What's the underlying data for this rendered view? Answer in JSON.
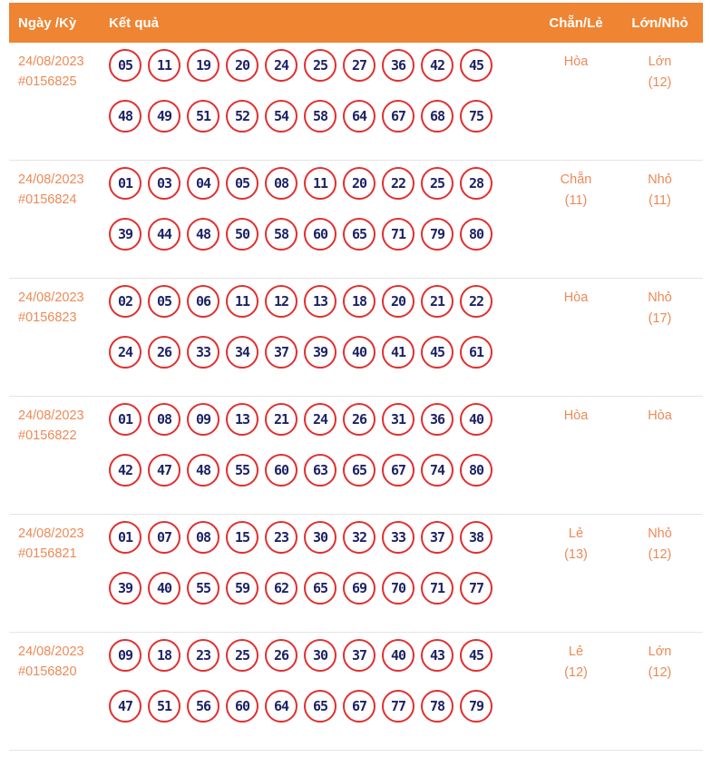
{
  "colors": {
    "header_bg": "#ef8432",
    "header_text": "#ffffff",
    "accent_text": "#ec8a57",
    "ball_border": "#e12f2f",
    "ball_text": "#1e2366",
    "row_divider": "#e4e4e4"
  },
  "header": {
    "col_date": "Ngày /Kỳ",
    "col_result": "Kết quả",
    "col_parity": "Chẵn/Lẻ",
    "col_size": "Lớn/Nhỏ"
  },
  "rows": [
    {
      "date": "24/08/2023",
      "period": "#0156825",
      "numbers_line1": [
        "05",
        "11",
        "19",
        "20",
        "24",
        "25",
        "27",
        "36",
        "42",
        "45"
      ],
      "numbers_line2": [
        "48",
        "49",
        "51",
        "52",
        "54",
        "58",
        "64",
        "67",
        "68",
        "75"
      ],
      "parity": "Hòa",
      "parity_count": "",
      "size": "Lớn",
      "size_count": "(12)"
    },
    {
      "date": "24/08/2023",
      "period": "#0156824",
      "numbers_line1": [
        "01",
        "03",
        "04",
        "05",
        "08",
        "11",
        "20",
        "22",
        "25",
        "28"
      ],
      "numbers_line2": [
        "39",
        "44",
        "48",
        "50",
        "58",
        "60",
        "65",
        "71",
        "79",
        "80"
      ],
      "parity": "Chẵn",
      "parity_count": "(11)",
      "size": "Nhỏ",
      "size_count": "(11)"
    },
    {
      "date": "24/08/2023",
      "period": "#0156823",
      "numbers_line1": [
        "02",
        "05",
        "06",
        "11",
        "12",
        "13",
        "18",
        "20",
        "21",
        "22"
      ],
      "numbers_line2": [
        "24",
        "26",
        "33",
        "34",
        "37",
        "39",
        "40",
        "41",
        "45",
        "61"
      ],
      "parity": "Hòa",
      "parity_count": "",
      "size": "Nhỏ",
      "size_count": "(17)"
    },
    {
      "date": "24/08/2023",
      "period": "#0156822",
      "numbers_line1": [
        "01",
        "08",
        "09",
        "13",
        "21",
        "24",
        "26",
        "31",
        "36",
        "40"
      ],
      "numbers_line2": [
        "42",
        "47",
        "48",
        "55",
        "60",
        "63",
        "65",
        "67",
        "74",
        "80"
      ],
      "parity": "Hòa",
      "parity_count": "",
      "size": "Hòa",
      "size_count": ""
    },
    {
      "date": "24/08/2023",
      "period": "#0156821",
      "numbers_line1": [
        "01",
        "07",
        "08",
        "15",
        "23",
        "30",
        "32",
        "33",
        "37",
        "38"
      ],
      "numbers_line2": [
        "39",
        "40",
        "55",
        "59",
        "62",
        "65",
        "69",
        "70",
        "71",
        "77"
      ],
      "parity": "Lẻ",
      "parity_count": "(13)",
      "size": "Nhỏ",
      "size_count": "(12)"
    },
    {
      "date": "24/08/2023",
      "period": "#0156820",
      "numbers_line1": [
        "09",
        "18",
        "23",
        "25",
        "26",
        "30",
        "37",
        "40",
        "43",
        "45"
      ],
      "numbers_line2": [
        "47",
        "51",
        "56",
        "60",
        "64",
        "65",
        "67",
        "77",
        "78",
        "79"
      ],
      "parity": "Lẻ",
      "parity_count": "(12)",
      "size": "Lớn",
      "size_count": "(12)"
    }
  ]
}
